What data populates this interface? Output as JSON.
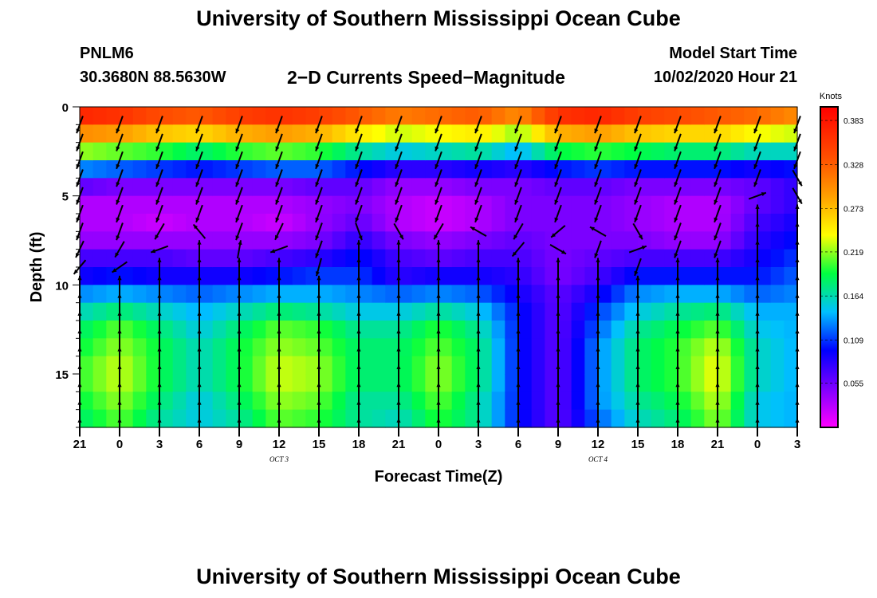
{
  "header": {
    "title": "University of Southern Mississippi Ocean Cube",
    "station": "PNLM6",
    "coords": "30.3680N 88.5630W",
    "subtitle": "2−D Currents Speed−Magnitude",
    "start_label": "Model Start Time",
    "start_value": "10/02/2020 Hour 21"
  },
  "footer": {
    "title": "University of Southern Mississippi Ocean Cube"
  },
  "chart_data": {
    "type": "heatmap",
    "title": "2−D Currents Speed−Magnitude",
    "xlabel": "Forecast Time(Z)",
    "ylabel": "Depth (ft)",
    "xlim": [
      0,
      54
    ],
    "ylim": [
      18,
      0
    ],
    "x_ticks": [
      {
        "v": 0,
        "label": "21"
      },
      {
        "v": 3,
        "label": "0"
      },
      {
        "v": 6,
        "label": "3"
      },
      {
        "v": 9,
        "label": "6"
      },
      {
        "v": 12,
        "label": "9"
      },
      {
        "v": 15,
        "label": "12"
      },
      {
        "v": 18,
        "label": "15"
      },
      {
        "v": 21,
        "label": "18"
      },
      {
        "v": 24,
        "label": "21"
      },
      {
        "v": 27,
        "label": "0"
      },
      {
        "v": 30,
        "label": "3"
      },
      {
        "v": 33,
        "label": "6"
      },
      {
        "v": 36,
        "label": "9"
      },
      {
        "v": 39,
        "label": "12"
      },
      {
        "v": 42,
        "label": "15"
      },
      {
        "v": 45,
        "label": "18"
      },
      {
        "v": 48,
        "label": "21"
      },
      {
        "v": 51,
        "label": "0"
      },
      {
        "v": 54,
        "label": "3"
      }
    ],
    "date_labels": [
      {
        "v": 15,
        "label": "OCT 3"
      },
      {
        "v": 39,
        "label": "OCT 4"
      }
    ],
    "y_ticks": [
      0,
      5,
      10,
      15
    ],
    "colorbar": {
      "unit": "Knots",
      "min": 0.0,
      "max": 0.4,
      "labels": [
        0.383,
        0.328,
        0.273,
        0.219,
        0.164,
        0.109,
        0.055
      ]
    },
    "depth_levels": [
      0.5,
      1.5,
      2.5,
      3.5,
      4.5,
      5.5,
      6.5,
      7.5,
      8.5,
      9.5,
      10.5,
      11.5,
      12.5,
      13.5,
      14.5,
      15.5,
      16.5,
      17.5
    ],
    "time_columns": [
      0,
      3,
      6,
      9,
      12,
      15,
      18,
      21,
      24,
      27,
      30,
      33,
      36,
      39,
      42,
      45,
      48,
      51,
      54
    ],
    "speed_profiles": [
      [
        0.37,
        0.3,
        0.22,
        0.13,
        0.06,
        0.03,
        0.03,
        0.04,
        0.07,
        0.09,
        0.13,
        0.16,
        0.18,
        0.19,
        0.2,
        0.2,
        0.19,
        0.18
      ],
      [
        0.36,
        0.29,
        0.21,
        0.12,
        0.05,
        0.03,
        0.03,
        0.04,
        0.07,
        0.1,
        0.14,
        0.18,
        0.21,
        0.22,
        0.23,
        0.23,
        0.22,
        0.21
      ],
      [
        0.34,
        0.27,
        0.2,
        0.11,
        0.05,
        0.03,
        0.02,
        0.04,
        0.07,
        0.09,
        0.13,
        0.16,
        0.18,
        0.19,
        0.19,
        0.19,
        0.18,
        0.17
      ],
      [
        0.33,
        0.26,
        0.18,
        0.1,
        0.05,
        0.03,
        0.03,
        0.04,
        0.06,
        0.09,
        0.12,
        0.14,
        0.15,
        0.16,
        0.16,
        0.16,
        0.15,
        0.15
      ],
      [
        0.35,
        0.28,
        0.2,
        0.11,
        0.05,
        0.03,
        0.03,
        0.04,
        0.06,
        0.09,
        0.13,
        0.16,
        0.18,
        0.19,
        0.19,
        0.19,
        0.18,
        0.17
      ],
      [
        0.36,
        0.29,
        0.21,
        0.12,
        0.05,
        0.03,
        0.02,
        0.04,
        0.07,
        0.1,
        0.14,
        0.18,
        0.21,
        0.22,
        0.23,
        0.23,
        0.22,
        0.21
      ],
      [
        0.35,
        0.28,
        0.2,
        0.12,
        0.06,
        0.04,
        0.04,
        0.05,
        0.08,
        0.11,
        0.14,
        0.17,
        0.2,
        0.21,
        0.22,
        0.22,
        0.21,
        0.2
      ],
      [
        0.33,
        0.25,
        0.17,
        0.1,
        0.06,
        0.05,
        0.06,
        0.08,
        0.1,
        0.11,
        0.13,
        0.15,
        0.17,
        0.18,
        0.18,
        0.18,
        0.17,
        0.17
      ],
      [
        0.31,
        0.23,
        0.15,
        0.08,
        0.04,
        0.03,
        0.03,
        0.05,
        0.07,
        0.08,
        0.12,
        0.15,
        0.17,
        0.18,
        0.18,
        0.18,
        0.17,
        0.16
      ],
      [
        0.32,
        0.24,
        0.16,
        0.08,
        0.04,
        0.02,
        0.02,
        0.04,
        0.06,
        0.09,
        0.13,
        0.17,
        0.2,
        0.21,
        0.22,
        0.22,
        0.21,
        0.2
      ],
      [
        0.33,
        0.25,
        0.17,
        0.09,
        0.05,
        0.03,
        0.03,
        0.05,
        0.07,
        0.09,
        0.12,
        0.15,
        0.17,
        0.18,
        0.18,
        0.18,
        0.17,
        0.17
      ],
      [
        0.3,
        0.22,
        0.14,
        0.08,
        0.05,
        0.05,
        0.05,
        0.06,
        0.07,
        0.08,
        0.09,
        0.1,
        0.1,
        0.1,
        0.1,
        0.1,
        0.1,
        0.1
      ],
      [
        0.36,
        0.28,
        0.19,
        0.1,
        0.06,
        0.05,
        0.05,
        0.05,
        0.05,
        0.05,
        0.06,
        0.06,
        0.06,
        0.06,
        0.06,
        0.06,
        0.06,
        0.06
      ],
      [
        0.37,
        0.29,
        0.2,
        0.11,
        0.06,
        0.05,
        0.05,
        0.05,
        0.06,
        0.07,
        0.09,
        0.11,
        0.12,
        0.13,
        0.13,
        0.13,
        0.13,
        0.12
      ],
      [
        0.35,
        0.27,
        0.19,
        0.1,
        0.05,
        0.04,
        0.04,
        0.05,
        0.07,
        0.1,
        0.13,
        0.15,
        0.17,
        0.18,
        0.18,
        0.18,
        0.17,
        0.16
      ],
      [
        0.34,
        0.26,
        0.18,
        0.1,
        0.05,
        0.03,
        0.03,
        0.04,
        0.07,
        0.1,
        0.14,
        0.17,
        0.19,
        0.2,
        0.2,
        0.2,
        0.19,
        0.18
      ],
      [
        0.33,
        0.26,
        0.18,
        0.1,
        0.05,
        0.03,
        0.03,
        0.04,
        0.07,
        0.1,
        0.14,
        0.18,
        0.21,
        0.23,
        0.24,
        0.24,
        0.23,
        0.22
      ],
      [
        0.32,
        0.24,
        0.16,
        0.09,
        0.06,
        0.06,
        0.07,
        0.08,
        0.09,
        0.1,
        0.12,
        0.14,
        0.15,
        0.16,
        0.16,
        0.16,
        0.15,
        0.15
      ],
      [
        0.3,
        0.23,
        0.16,
        0.1,
        0.08,
        0.08,
        0.09,
        0.1,
        0.11,
        0.12,
        0.13,
        0.14,
        0.14,
        0.14,
        0.14,
        0.14,
        0.14,
        0.14
      ]
    ],
    "arrow_directions_deg": [
      [
        200,
        200,
        200,
        200,
        200,
        200,
        200,
        205,
        220,
        0,
        0,
        0,
        0,
        0,
        0,
        0,
        0,
        0
      ],
      [
        200,
        200,
        200,
        200,
        200,
        200,
        200,
        210,
        235,
        0,
        0,
        0,
        0,
        0,
        0,
        0,
        0,
        0
      ],
      [
        200,
        200,
        200,
        200,
        200,
        200,
        210,
        250,
        0,
        0,
        0,
        0,
        0,
        0,
        0,
        0,
        0,
        0
      ],
      [
        200,
        200,
        200,
        200,
        200,
        200,
        320,
        0,
        0,
        0,
        0,
        0,
        0,
        0,
        0,
        0,
        0,
        0
      ],
      [
        200,
        200,
        200,
        200,
        200,
        200,
        200,
        10,
        0,
        0,
        0,
        0,
        0,
        0,
        0,
        0,
        0,
        0
      ],
      [
        200,
        200,
        200,
        200,
        200,
        200,
        205,
        250,
        0,
        0,
        0,
        0,
        0,
        0,
        0,
        0,
        0,
        0
      ],
      [
        200,
        200,
        200,
        200,
        200,
        200,
        200,
        200,
        195,
        0,
        0,
        0,
        0,
        0,
        0,
        0,
        0,
        0
      ],
      [
        200,
        200,
        200,
        200,
        200,
        200,
        160,
        0,
        0,
        0,
        0,
        0,
        0,
        0,
        0,
        0,
        0,
        0
      ],
      [
        200,
        200,
        200,
        200,
        200,
        200,
        150,
        0,
        0,
        0,
        0,
        0,
        0,
        0,
        0,
        0,
        0,
        0
      ],
      [
        200,
        200,
        200,
        200,
        200,
        200,
        210,
        0,
        0,
        0,
        0,
        0,
        0,
        0,
        0,
        0,
        0,
        0
      ],
      [
        200,
        200,
        200,
        200,
        200,
        200,
        300,
        0,
        0,
        0,
        0,
        0,
        0,
        0,
        0,
        0,
        0,
        0
      ],
      [
        200,
        200,
        200,
        200,
        200,
        200,
        210,
        220,
        0,
        0,
        0,
        0,
        0,
        0,
        0,
        0,
        0,
        0
      ],
      [
        200,
        200,
        200,
        200,
        200,
        200,
        230,
        120,
        0,
        0,
        0,
        0,
        0,
        0,
        0,
        0,
        0,
        0
      ],
      [
        200,
        200,
        200,
        200,
        200,
        200,
        300,
        200,
        0,
        0,
        0,
        0,
        0,
        0,
        0,
        0,
        0,
        0
      ],
      [
        200,
        200,
        200,
        200,
        200,
        200,
        150,
        70,
        200,
        0,
        0,
        0,
        0,
        0,
        0,
        0,
        0,
        0
      ],
      [
        200,
        200,
        200,
        200,
        200,
        200,
        200,
        200,
        0,
        0,
        0,
        0,
        0,
        0,
        0,
        0,
        0,
        0
      ],
      [
        200,
        200,
        200,
        200,
        200,
        200,
        200,
        200,
        0,
        0,
        0,
        0,
        0,
        0,
        0,
        0,
        0,
        0
      ],
      [
        200,
        200,
        200,
        200,
        70,
        0,
        0,
        0,
        0,
        0,
        0,
        0,
        0,
        0,
        0,
        0,
        0,
        0
      ],
      [
        200,
        200,
        200,
        150,
        150,
        0,
        0,
        0,
        0,
        0,
        0,
        0,
        0,
        0,
        0,
        0,
        0,
        0
      ]
    ]
  }
}
